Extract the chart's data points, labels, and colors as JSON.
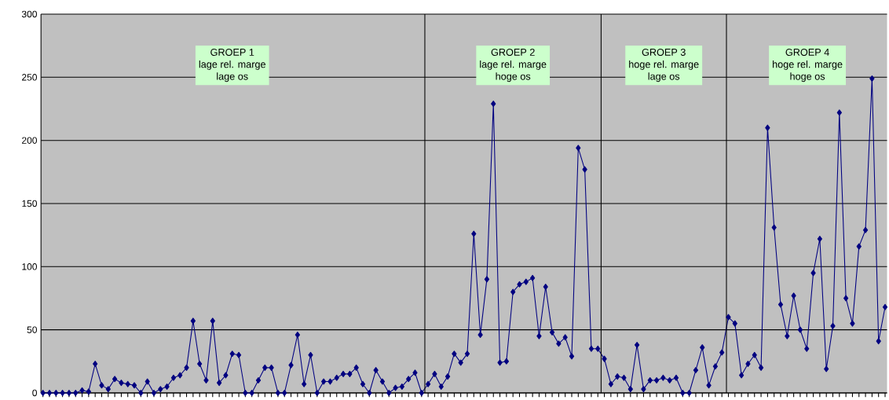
{
  "chart_data": {
    "type": "line",
    "categories": [
      null,
      null,
      null,
      null,
      null,
      null,
      null,
      null,
      null,
      null,
      null,
      null,
      null,
      null,
      null,
      null,
      null,
      null,
      null,
      null,
      null,
      null,
      null,
      null,
      null,
      null,
      null,
      null,
      null,
      null,
      null,
      null,
      null,
      null,
      null,
      null,
      null,
      null,
      null,
      null,
      null,
      null,
      null,
      null,
      null,
      null,
      null,
      null,
      null,
      null,
      null,
      null,
      null,
      null,
      null,
      null,
      null,
      null,
      null,
      null,
      null,
      null,
      null,
      null,
      null,
      null,
      null,
      null,
      null,
      null,
      null,
      null,
      null,
      null,
      null,
      null,
      null,
      null,
      null,
      null,
      null,
      null,
      null,
      null,
      null,
      null,
      null,
      null,
      null,
      null,
      null,
      null,
      null,
      null,
      null,
      null,
      null,
      null,
      null,
      null,
      null,
      null,
      null,
      null,
      null,
      null,
      null,
      null,
      null,
      null,
      null,
      null,
      null,
      null,
      null,
      null,
      null,
      null,
      null,
      null,
      null,
      null,
      null,
      null,
      null,
      null,
      null,
      null,
      null,
      null
    ],
    "series": [
      {
        "color": "#000080",
        "values": [
          0,
          0,
          0,
          0,
          0,
          0,
          2,
          1,
          23,
          6,
          3,
          11,
          8,
          7,
          6,
          0,
          9,
          0,
          3,
          5,
          12,
          14,
          20,
          57,
          23,
          10,
          57,
          8,
          14,
          31,
          30,
          0,
          0,
          10,
          20,
          20,
          0,
          0,
          22,
          46,
          7,
          30,
          0,
          9,
          9,
          12,
          15,
          15,
          20,
          7,
          0,
          18,
          9,
          0,
          4,
          5,
          11,
          16,
          0,
          7,
          15,
          5,
          13,
          31,
          24,
          31,
          126,
          46,
          90,
          229,
          24,
          25,
          80,
          86,
          88,
          91,
          45,
          84,
          48,
          39,
          44,
          29,
          194,
          177,
          35,
          35,
          27,
          7,
          13,
          12,
          3,
          38,
          3,
          10,
          10,
          12,
          10,
          12,
          0,
          0,
          18,
          36,
          6,
          21,
          32,
          60,
          55,
          14,
          23,
          30,
          20,
          210,
          131,
          70,
          45,
          77,
          50,
          35,
          95,
          122,
          19,
          53,
          222,
          75,
          55,
          116,
          129,
          249,
          41,
          68
        ]
      }
    ],
    "ylim": [
      0,
      300
    ],
    "yticks": [
      0,
      50,
      100,
      150,
      200,
      250,
      300
    ],
    "grid": "y",
    "marker": "diamond",
    "line_style": "solid",
    "tick_labels": "y",
    "annotations": [
      "GROEP 1",
      "lage rel. marge",
      "lage os",
      "GROEP 2",
      "lage rel. marge",
      "hoge os",
      "GROEP 3",
      "hoge rel. marge",
      "lage os",
      "GROEP 4",
      "hoge rel. marge",
      "hoge os"
    ]
  }
}
